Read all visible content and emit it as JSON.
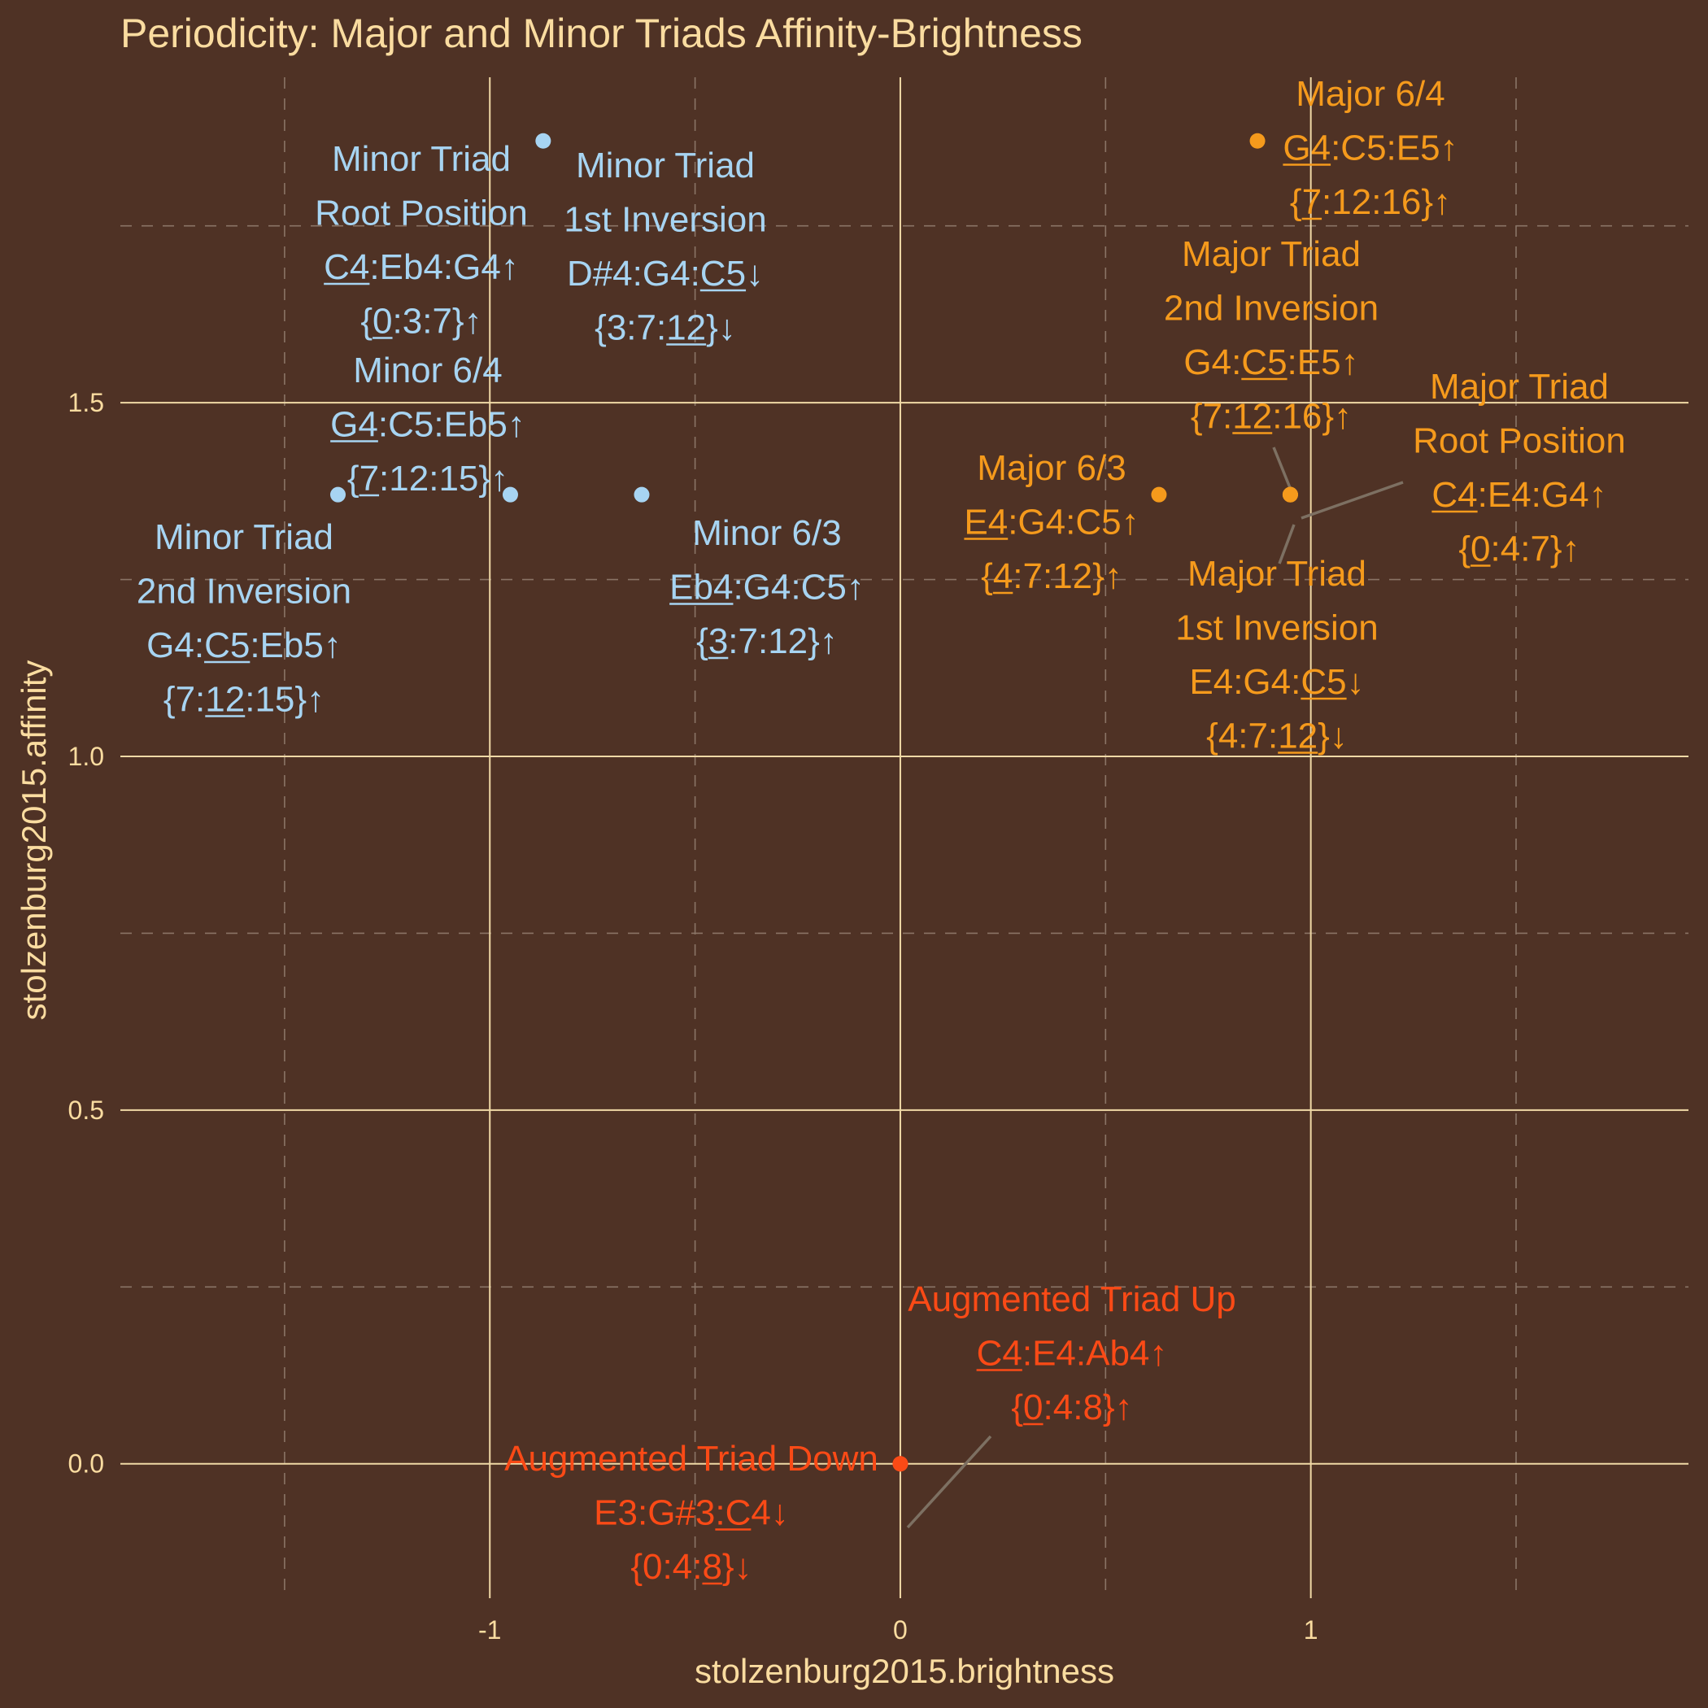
{
  "chart_data": {
    "type": "scatter",
    "title": "Periodicity: Major and Minor Triads Affinity-Brightness",
    "xlabel": "stolzenburg2015.brightness",
    "ylabel": "stolzenburg2015.affinity",
    "xlim": [
      -1.9,
      1.92
    ],
    "ylim": [
      -0.19,
      1.96
    ],
    "x_ticks": [
      -1,
      0,
      1
    ],
    "x_tick_labels": [
      "-1",
      "0",
      "1"
    ],
    "y_ticks": [
      0.0,
      0.5,
      1.0,
      1.5
    ],
    "y_tick_labels": [
      "0.0",
      "0.5",
      "1.0",
      "1.5"
    ],
    "grid": true,
    "colors": {
      "background": "#4f3225",
      "minor": "#a7d4f2",
      "major": "#f59a1c",
      "augmented": "#fa4a16"
    },
    "points": [
      {
        "x": -1.37,
        "y": 1.37,
        "group": "minor",
        "label": [
          "Minor Triad",
          "2nd Inversion",
          "G4:C5:Eb5↑",
          "{7:12:15}↑"
        ],
        "underline": [
          null,
          null,
          [
            3,
            5
          ],
          [
            3,
            5
          ]
        ]
      },
      {
        "x": -0.95,
        "y": 1.37,
        "group": "minor",
        "label": [
          "Minor 6/4",
          "G4:C5:Eb5↑",
          "{7:12:15}↑"
        ],
        "underline": [
          null,
          [
            0,
            2
          ],
          [
            1,
            2
          ]
        ]
      },
      {
        "x": -0.87,
        "y": 1.87,
        "group": "minor",
        "label": [
          "Minor Triad",
          "Root Position",
          "C4:Eb4:G4↑",
          "{0:3:7}↑"
        ],
        "underline": [
          null,
          null,
          [
            0,
            2
          ],
          [
            1,
            2
          ]
        ]
      },
      {
        "x": -0.63,
        "y": 1.37,
        "group": "minor",
        "label": [
          "Minor 6/3",
          "Eb4:G4:C5↑",
          "{3:7:12}↑"
        ],
        "underline": [
          null,
          [
            0,
            3
          ],
          [
            1,
            2
          ]
        ]
      },
      {
        "x": -0.63,
        "y": 1.87,
        "group": "minor",
        "label": [
          "Minor Triad",
          "1st Inversion",
          "D#4:G4:C5↓",
          "{3:7:12}↓"
        ],
        "underline": [
          null,
          null,
          [
            7,
            9
          ],
          [
            5,
            7
          ]
        ],
        "hidden_point": true
      },
      {
        "x": 0.63,
        "y": 1.37,
        "group": "major",
        "label": [
          "Major 6/3",
          "E4:G4:C5↑",
          "{4:7:12}↑"
        ],
        "underline": [
          null,
          [
            0,
            2
          ],
          [
            1,
            2
          ]
        ]
      },
      {
        "x": 0.87,
        "y": 1.87,
        "group": "major",
        "label": [
          "Major 6/4",
          "G4:C5:E5↑",
          "{7:12:16}↑"
        ],
        "underline": [
          null,
          [
            0,
            2
          ],
          [
            1,
            2
          ]
        ]
      },
      {
        "x": 0.95,
        "y": 1.37,
        "group": "major",
        "label": [
          "Major Triad",
          "2nd Inversion",
          "G4:C5:E5↑",
          "{7:12:16}↑"
        ],
        "underline": [
          null,
          null,
          [
            3,
            5
          ],
          [
            3,
            5
          ]
        ]
      },
      {
        "x": 0.95,
        "y": 1.37,
        "group": "major",
        "label": [
          "Major Triad",
          "Root Position",
          "C4:E4:G4↑",
          "{0:4:7}↑"
        ],
        "underline": [
          null,
          null,
          [
            0,
            2
          ],
          [
            1,
            2
          ]
        ]
      },
      {
        "x": 0.95,
        "y": 1.37,
        "group": "major",
        "label": [
          "Major Triad",
          "1st Inversion",
          "E4:G4:C5↓",
          "{4:7:12}↓"
        ],
        "underline": [
          null,
          null,
          [
            6,
            8
          ],
          [
            5,
            7
          ]
        ]
      },
      {
        "x": 0.0,
        "y": 0.0,
        "group": "augmented",
        "label": [
          "Augmented Triad Up",
          "C4:E4:Ab4↑",
          "{0:4:8}↑"
        ],
        "underline": [
          null,
          [
            0,
            2
          ],
          [
            1,
            2
          ]
        ]
      },
      {
        "x": 0.0,
        "y": 0.0,
        "group": "augmented",
        "label": [
          "Augmented Triad Down",
          "E3:G#3:C4↓",
          "{0:4:8}↓"
        ],
        "underline": [
          null,
          [
            6,
            8
          ],
          [
            5,
            6
          ]
        ]
      }
    ]
  }
}
